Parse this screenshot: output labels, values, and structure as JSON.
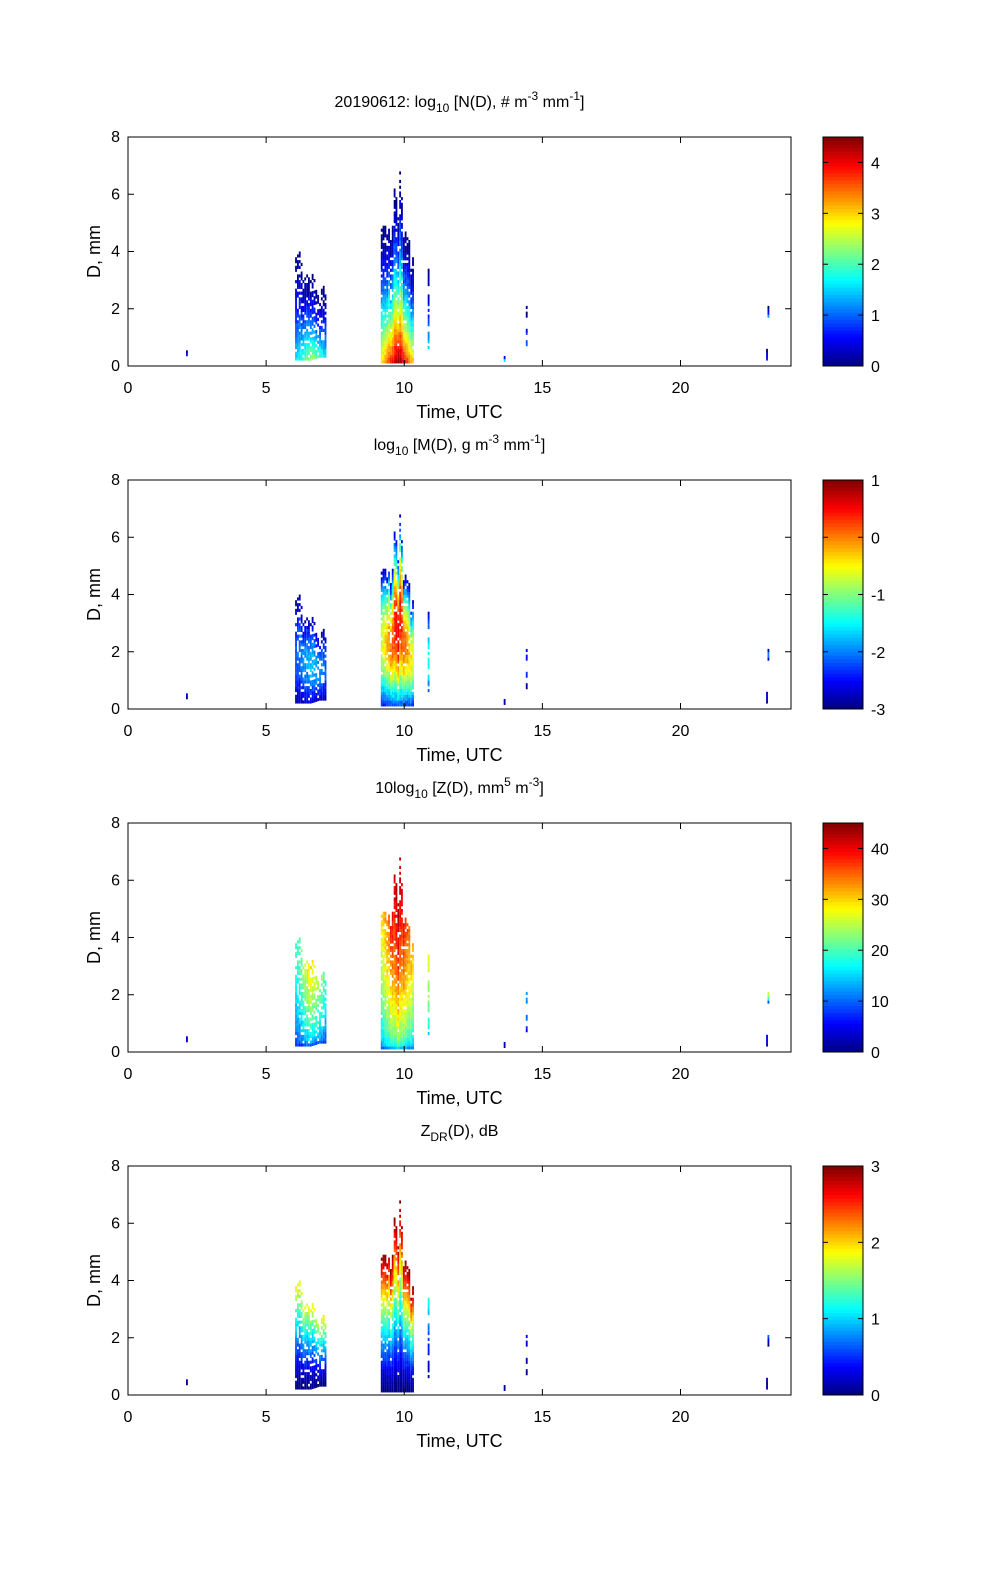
{
  "figure": {
    "date": "20190612"
  },
  "chart_data": [
    {
      "type": "heatmap",
      "id": "nd",
      "title": {
        "prefix": "20190612: log",
        "sub": "10",
        "main": " [N(D), # m",
        "sup1": "-3",
        "mid": " mm",
        "sup2": "-1",
        "suffix": "]"
      },
      "xlabel": "Time, UTC",
      "ylabel": "D, mm",
      "xlim": [
        0,
        24
      ],
      "ylim": [
        0,
        8
      ],
      "xticks": [
        0,
        5,
        10,
        15,
        20
      ],
      "yticks": [
        0,
        2,
        4,
        6,
        8
      ],
      "colorbar": {
        "min": 0,
        "max": 4.5,
        "ticks": [
          0,
          1,
          2,
          3,
          4
        ]
      },
      "events": [
        {
          "t": [
            6.3,
            6.6,
            6.9
          ],
          "top": [
            3.6,
            2.9,
            2.6
          ],
          "base": [
            0.2,
            0.2,
            0.3
          ],
          "peak": 2.4,
          "dens": 0.6
        },
        {
          "t": [
            9.4,
            9.8,
            10.1
          ],
          "top": [
            4.6,
            6.2,
            3.8
          ],
          "base": [
            0.1,
            0.1,
            0.1
          ],
          "peak": 4.5,
          "dens": 0.75
        },
        {
          "t": [
            10.85
          ],
          "top": [
            3.3
          ],
          "base": [
            0.3
          ],
          "peak": 1.8,
          "dens": 0.4
        },
        {
          "t": [
            14.4
          ],
          "top": [
            2.1
          ],
          "base": [
            0.7
          ],
          "peak": 1.0,
          "dens": 0.5
        },
        {
          "t": [
            2.1
          ],
          "top": [
            0.5
          ],
          "base": [
            0.35
          ],
          "peak": 0.6,
          "dens": 1
        },
        {
          "t": [
            13.6
          ],
          "top": [
            0.3
          ],
          "base": [
            0.15
          ],
          "peak": 1.6,
          "dens": 1
        },
        {
          "t": [
            23.1
          ],
          "top": [
            0.5
          ],
          "base": [
            0.2
          ],
          "peak": 0.6,
          "dens": 1
        },
        {
          "t": [
            23.15
          ],
          "top": [
            1.9
          ],
          "base": [
            1.7
          ],
          "peak": 1.2,
          "dens": 1
        }
      ]
    },
    {
      "type": "heatmap",
      "id": "md",
      "title": {
        "prefix": "log",
        "sub": "10",
        "main": " [M(D), g m",
        "sup1": "-3",
        "mid": " mm",
        "sup2": "-1",
        "suffix": "]"
      },
      "xlabel": "Time, UTC",
      "ylabel": "D, mm",
      "xlim": [
        0,
        24
      ],
      "ylim": [
        0,
        8
      ],
      "xticks": [
        0,
        5,
        10,
        15,
        20
      ],
      "yticks": [
        0,
        2,
        4,
        6,
        8
      ],
      "colorbar": {
        "min": -3,
        "max": 1,
        "ticks": [
          -3,
          -2,
          -1,
          0,
          1
        ]
      },
      "events": [
        {
          "t": [
            6.3,
            6.6,
            6.9
          ],
          "top": [
            3.6,
            2.9,
            2.6
          ],
          "base": [
            0.2,
            0.2,
            0.3
          ],
          "peak": -1.7,
          "dens": 0.6
        },
        {
          "t": [
            9.4,
            9.8,
            10.1
          ],
          "top": [
            4.6,
            6.2,
            3.8
          ],
          "base": [
            0.1,
            0.1,
            0.1
          ],
          "peak": 0.6,
          "dens": 0.75
        },
        {
          "t": [
            10.85
          ],
          "top": [
            3.3
          ],
          "base": [
            0.3
          ],
          "peak": -1.4,
          "dens": 0.4
        },
        {
          "t": [
            14.4
          ],
          "top": [
            2.1
          ],
          "base": [
            0.7
          ],
          "peak": -2.2,
          "dens": 0.5
        },
        {
          "t": [
            2.1
          ],
          "top": [
            0.5
          ],
          "base": [
            0.35
          ],
          "peak": -2.6,
          "dens": 1
        },
        {
          "t": [
            13.6
          ],
          "top": [
            0.3
          ],
          "base": [
            0.15
          ],
          "peak": -2.8,
          "dens": 1
        },
        {
          "t": [
            23.1
          ],
          "top": [
            0.5
          ],
          "base": [
            0.2
          ],
          "peak": -2.6,
          "dens": 1
        },
        {
          "t": [
            23.15
          ],
          "top": [
            1.9
          ],
          "base": [
            1.7
          ],
          "peak": -1.8,
          "dens": 1
        }
      ]
    },
    {
      "type": "heatmap",
      "id": "zd",
      "title": {
        "prefix": "10log",
        "sub": "10",
        "main": " [Z(D),  mm",
        "sup1": "5",
        "mid": " m",
        "sup2": "-3",
        "suffix": "]"
      },
      "xlabel": "Time, UTC",
      "ylabel": "D, mm",
      "xlim": [
        0,
        24
      ],
      "ylim": [
        0,
        8
      ],
      "xticks": [
        0,
        5,
        10,
        15,
        20
      ],
      "yticks": [
        0,
        2,
        4,
        6,
        8
      ],
      "colorbar": {
        "min": 0,
        "max": 45,
        "ticks": [
          0,
          10,
          20,
          30,
          40
        ]
      },
      "events": [
        {
          "t": [
            6.3,
            6.6,
            6.9
          ],
          "top": [
            3.6,
            2.9,
            2.6
          ],
          "base": [
            0.2,
            0.2,
            0.3
          ],
          "peak": 30,
          "dens": 0.6
        },
        {
          "t": [
            9.4,
            9.8,
            10.1
          ],
          "top": [
            4.6,
            6.2,
            3.8
          ],
          "base": [
            0.1,
            0.1,
            0.1
          ],
          "peak": 45,
          "dens": 0.75
        },
        {
          "t": [
            10.85
          ],
          "top": [
            3.3
          ],
          "base": [
            0.3
          ],
          "peak": 28,
          "dens": 0.4
        },
        {
          "t": [
            14.4
          ],
          "top": [
            2.1
          ],
          "base": [
            0.7
          ],
          "peak": 14,
          "dens": 0.5
        },
        {
          "t": [
            2.1
          ],
          "top": [
            0.5
          ],
          "base": [
            0.35
          ],
          "peak": 4,
          "dens": 1
        },
        {
          "t": [
            13.6
          ],
          "top": [
            0.3
          ],
          "base": [
            0.15
          ],
          "peak": 3,
          "dens": 1
        },
        {
          "t": [
            23.1
          ],
          "top": [
            0.5
          ],
          "base": [
            0.2
          ],
          "peak": 6,
          "dens": 1
        },
        {
          "t": [
            23.15
          ],
          "top": [
            1.9
          ],
          "base": [
            1.7
          ],
          "peak": 26,
          "dens": 1
        }
      ]
    },
    {
      "type": "heatmap",
      "id": "zdr",
      "title": {
        "prefix": "Z",
        "sub": "DR",
        "main": "(D), dB",
        "sup1": "",
        "mid": "",
        "sup2": "",
        "suffix": ""
      },
      "xlabel": "Time, UTC",
      "ylabel": "D, mm",
      "xlim": [
        0,
        24
      ],
      "ylim": [
        0,
        8
      ],
      "xticks": [
        0,
        5,
        10,
        15,
        20
      ],
      "yticks": [
        0,
        2,
        4,
        6,
        8
      ],
      "colorbar": {
        "min": 0,
        "max": 3,
        "ticks": [
          0,
          1,
          2,
          3
        ]
      },
      "events": [
        {
          "t": [
            6.3,
            6.6,
            6.9
          ],
          "top": [
            3.6,
            2.9,
            2.6
          ],
          "base": [
            0.2,
            0.2,
            0.3
          ],
          "peak": 1.9,
          "dens": 0.6
        },
        {
          "t": [
            9.4,
            9.8,
            10.1
          ],
          "top": [
            4.6,
            6.2,
            3.8
          ],
          "base": [
            0.1,
            0.1,
            0.1
          ],
          "peak": 3.0,
          "dens": 0.75
        },
        {
          "t": [
            10.85
          ],
          "top": [
            3.3
          ],
          "base": [
            0.3
          ],
          "peak": 1.3,
          "dens": 0.4
        },
        {
          "t": [
            14.4
          ],
          "top": [
            2.1
          ],
          "base": [
            0.7
          ],
          "peak": 0.4,
          "dens": 0.5
        },
        {
          "t": [
            2.1
          ],
          "top": [
            0.5
          ],
          "base": [
            0.35
          ],
          "peak": 0.2,
          "dens": 1
        },
        {
          "t": [
            13.6
          ],
          "top": [
            0.3
          ],
          "base": [
            0.15
          ],
          "peak": 0.2,
          "dens": 1
        },
        {
          "t": [
            23.1
          ],
          "top": [
            0.5
          ],
          "base": [
            0.2
          ],
          "peak": 0.2,
          "dens": 1
        },
        {
          "t": [
            23.15
          ],
          "top": [
            1.9
          ],
          "base": [
            1.7
          ],
          "peak": 0.7,
          "dens": 1
        }
      ]
    }
  ]
}
